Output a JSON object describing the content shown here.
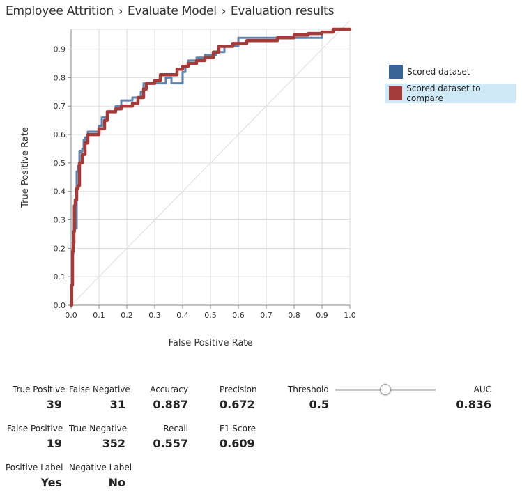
{
  "breadcrumb": [
    "Employee Attrition",
    "Evaluate Model",
    "Evaluation results"
  ],
  "breadcrumb_sep": "›",
  "chart_data": {
    "type": "line",
    "xlabel": "False Positive Rate",
    "ylabel": "True Positive Rate",
    "xlim": [
      0,
      1
    ],
    "ylim": [
      0,
      0.97
    ],
    "xticks": [
      "0.0",
      "0.1",
      "0.2",
      "0.3",
      "0.4",
      "0.5",
      "0.6",
      "0.7",
      "0.8",
      "0.9",
      "1.0"
    ],
    "yticks": [
      "0.0",
      "0.1",
      "0.2",
      "0.3",
      "0.4",
      "0.5",
      "0.6",
      "0.7",
      "0.8",
      "0.9"
    ],
    "grid": true,
    "legend_position": "right",
    "diagonal": true,
    "series": [
      {
        "name": "Scored dataset",
        "color": "#3a6496",
        "selected": false,
        "points": [
          [
            0,
            0
          ],
          [
            0.002,
            0.05
          ],
          [
            0.003,
            0.18
          ],
          [
            0.008,
            0.2
          ],
          [
            0.01,
            0.28
          ],
          [
            0.015,
            0.3
          ],
          [
            0.02,
            0.27
          ],
          [
            0.02,
            0.47
          ],
          [
            0.025,
            0.49
          ],
          [
            0.03,
            0.54
          ],
          [
            0.04,
            0.55
          ],
          [
            0.045,
            0.58
          ],
          [
            0.05,
            0.59
          ],
          [
            0.06,
            0.61
          ],
          [
            0.08,
            0.61
          ],
          [
            0.1,
            0.63
          ],
          [
            0.11,
            0.66
          ],
          [
            0.13,
            0.68
          ],
          [
            0.16,
            0.7
          ],
          [
            0.18,
            0.72
          ],
          [
            0.2,
            0.72
          ],
          [
            0.22,
            0.73
          ],
          [
            0.25,
            0.75
          ],
          [
            0.26,
            0.78
          ],
          [
            0.3,
            0.78
          ],
          [
            0.34,
            0.78
          ],
          [
            0.34,
            0.8
          ],
          [
            0.35,
            0.8
          ],
          [
            0.36,
            0.78
          ],
          [
            0.38,
            0.78
          ],
          [
            0.4,
            0.82
          ],
          [
            0.41,
            0.84
          ],
          [
            0.42,
            0.86
          ],
          [
            0.45,
            0.87
          ],
          [
            0.48,
            0.88
          ],
          [
            0.52,
            0.89
          ],
          [
            0.55,
            0.91
          ],
          [
            0.6,
            0.94
          ],
          [
            0.66,
            0.94
          ],
          [
            0.72,
            0.94
          ],
          [
            0.78,
            0.94
          ],
          [
            0.84,
            0.94
          ],
          [
            0.9,
            0.96
          ],
          [
            0.94,
            0.97
          ],
          [
            1.0,
            0.97
          ]
        ]
      },
      {
        "name": "Scored dataset to compare",
        "color": "#a33b3b",
        "selected": true,
        "points": [
          [
            0,
            0
          ],
          [
            0.002,
            0.07
          ],
          [
            0.005,
            0.19
          ],
          [
            0.008,
            0.22
          ],
          [
            0.01,
            0.26
          ],
          [
            0.012,
            0.35
          ],
          [
            0.015,
            0.37
          ],
          [
            0.02,
            0.41
          ],
          [
            0.025,
            0.42
          ],
          [
            0.03,
            0.5
          ],
          [
            0.04,
            0.53
          ],
          [
            0.05,
            0.57
          ],
          [
            0.06,
            0.6
          ],
          [
            0.1,
            0.62
          ],
          [
            0.12,
            0.65
          ],
          [
            0.13,
            0.68
          ],
          [
            0.16,
            0.69
          ],
          [
            0.18,
            0.7
          ],
          [
            0.22,
            0.71
          ],
          [
            0.24,
            0.73
          ],
          [
            0.26,
            0.76
          ],
          [
            0.27,
            0.78
          ],
          [
            0.3,
            0.79
          ],
          [
            0.32,
            0.81
          ],
          [
            0.35,
            0.81
          ],
          [
            0.38,
            0.83
          ],
          [
            0.4,
            0.84
          ],
          [
            0.42,
            0.85
          ],
          [
            0.45,
            0.86
          ],
          [
            0.48,
            0.87
          ],
          [
            0.51,
            0.89
          ],
          [
            0.53,
            0.91
          ],
          [
            0.58,
            0.92
          ],
          [
            0.63,
            0.93
          ],
          [
            0.68,
            0.93
          ],
          [
            0.74,
            0.94
          ],
          [
            0.8,
            0.95
          ],
          [
            0.85,
            0.955
          ],
          [
            0.9,
            0.96
          ],
          [
            0.94,
            0.97
          ],
          [
            1.0,
            0.97
          ]
        ]
      }
    ]
  },
  "metrics": {
    "true_positive": {
      "label": "True Positive",
      "value": "39"
    },
    "false_negative": {
      "label": "False Negative",
      "value": "31"
    },
    "accuracy": {
      "label": "Accuracy",
      "value": "0.887"
    },
    "precision": {
      "label": "Precision",
      "value": "0.672"
    },
    "threshold": {
      "label": "Threshold",
      "value": "0.5",
      "slider_fraction": 0.5
    },
    "auc": {
      "label": "AUC",
      "value": "0.836"
    },
    "false_positive": {
      "label": "False Positive",
      "value": "19"
    },
    "true_negative": {
      "label": "True Negative",
      "value": "352"
    },
    "recall": {
      "label": "Recall",
      "value": "0.557"
    },
    "f1": {
      "label": "F1 Score",
      "value": "0.609"
    },
    "positive_label": {
      "label": "Positive Label",
      "value": "Yes"
    },
    "negative_label": {
      "label": "Negative Label",
      "value": "No"
    }
  }
}
